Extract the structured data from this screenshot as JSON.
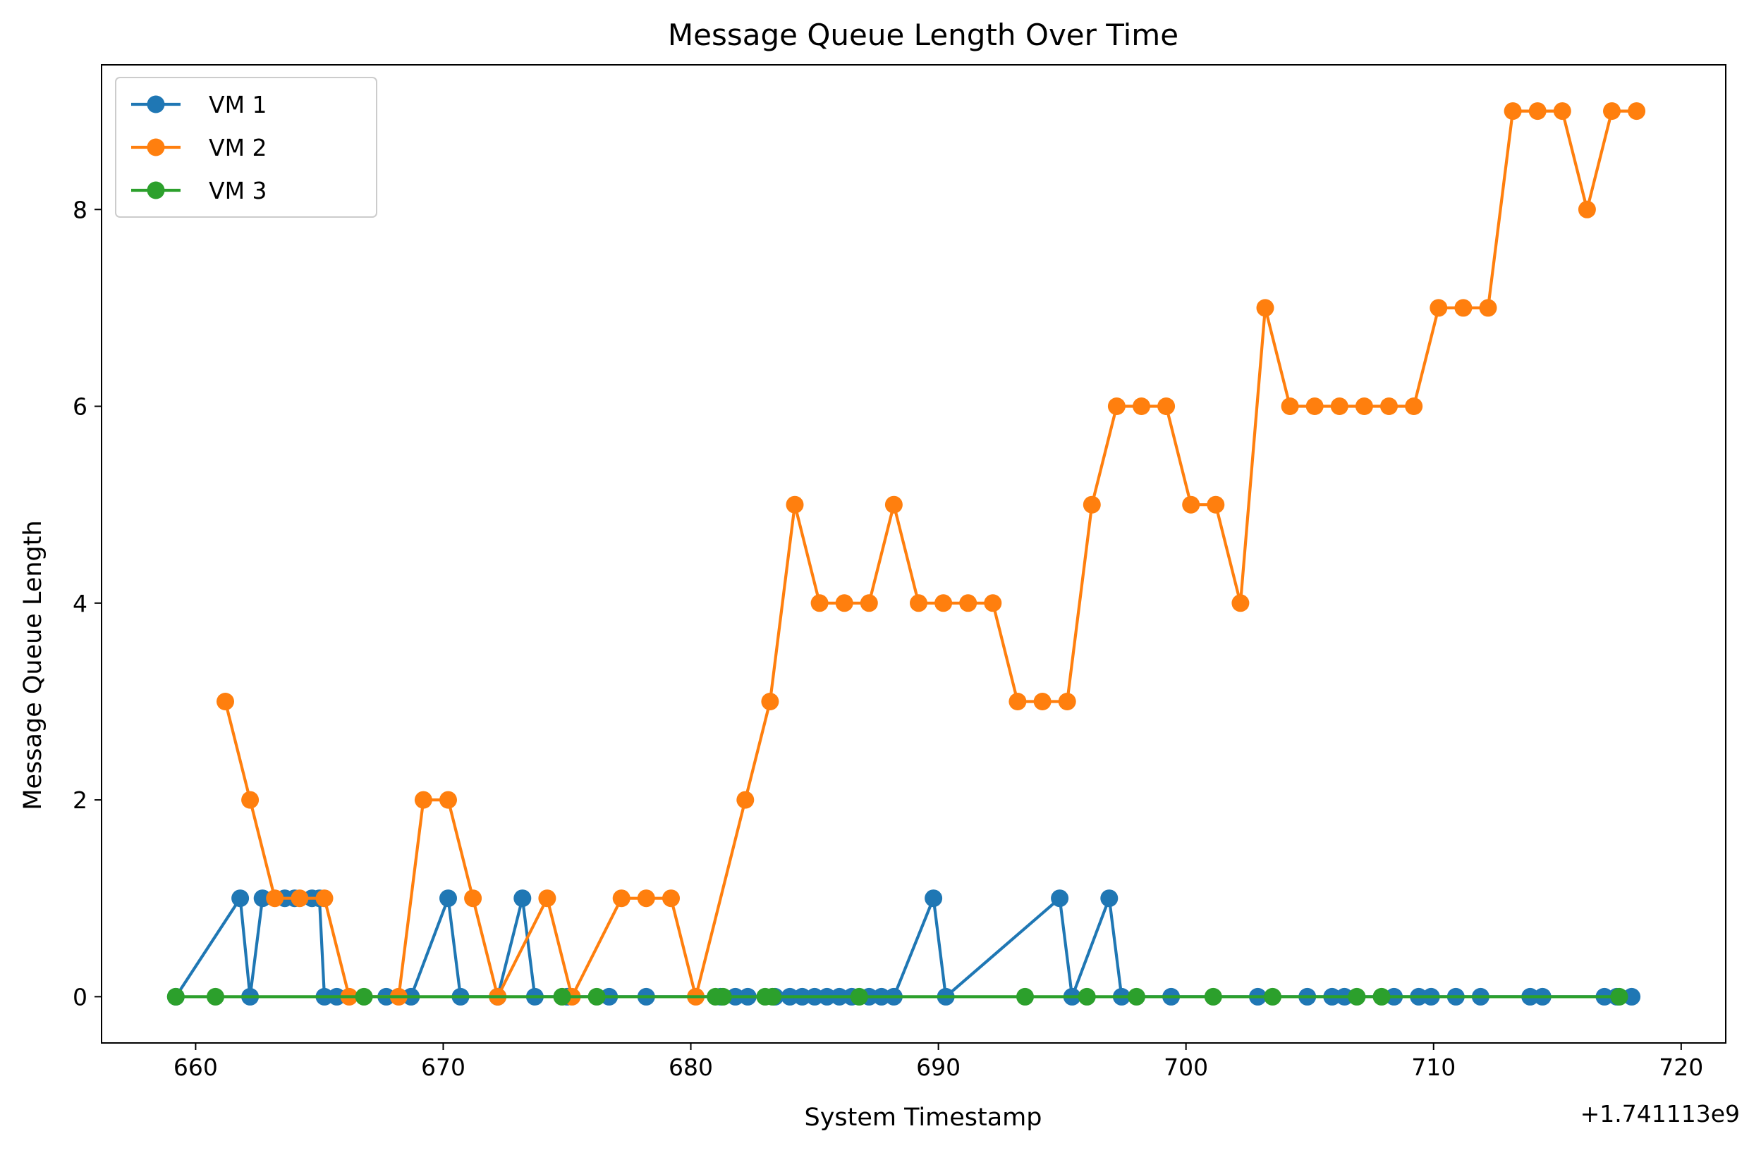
{
  "chart_data": {
    "type": "line",
    "title": "Message Queue Length Over Time",
    "xlabel": "System Timestamp",
    "ylabel": "Message Queue Length",
    "x_offset_label": "+1.741113e9",
    "xlim": [
      656.2,
      721.8
    ],
    "ylim": [
      -0.47,
      9.47
    ],
    "xticks": [
      660,
      670,
      680,
      690,
      700,
      710,
      720
    ],
    "yticks": [
      0,
      2,
      4,
      6,
      8
    ],
    "grid": false,
    "legend_position": "top-left",
    "series": [
      {
        "name": "VM 1",
        "color": "#1f77b4",
        "x": [
          659.2,
          661.8,
          662.2,
          662.7,
          663.6,
          664.0,
          664.7,
          665.0,
          665.2,
          665.7,
          667.7,
          668.7,
          670.2,
          670.7,
          672.2,
          673.2,
          673.7,
          675.0,
          676.7,
          678.2,
          681.2,
          681.8,
          682.3,
          683.4,
          684.0,
          684.5,
          685.0,
          685.5,
          686.0,
          686.5,
          687.2,
          687.7,
          688.2,
          689.8,
          690.3,
          694.9,
          695.4,
          696.9,
          697.4,
          699.4,
          702.9,
          704.9,
          705.9,
          706.4,
          708.4,
          709.4,
          709.9,
          710.9,
          711.9,
          713.9,
          714.4,
          716.9,
          717.4,
          718.0
        ],
        "y": [
          0,
          1,
          0,
          1,
          1,
          1,
          1,
          1,
          0,
          0,
          0,
          0,
          1,
          0,
          0,
          1,
          0,
          0,
          0,
          0,
          0,
          0,
          0,
          0,
          0,
          0,
          0,
          0,
          0,
          0,
          0,
          0,
          0,
          1,
          0,
          1,
          0,
          1,
          0,
          0,
          0,
          0,
          0,
          0,
          0,
          0,
          0,
          0,
          0,
          0,
          0,
          0,
          0,
          0
        ]
      },
      {
        "name": "VM 2",
        "color": "#ff7f0e",
        "x": [
          661.2,
          662.2,
          663.2,
          664.2,
          665.2,
          666.2,
          668.2,
          669.2,
          670.2,
          671.2,
          672.2,
          674.2,
          675.2,
          677.2,
          678.2,
          679.2,
          680.2,
          682.2,
          683.2,
          684.2,
          685.2,
          686.2,
          687.2,
          688.2,
          689.2,
          690.2,
          691.2,
          692.2,
          693.2,
          694.2,
          695.2,
          696.2,
          697.2,
          698.2,
          699.2,
          700.2,
          701.2,
          702.2,
          703.2,
          704.2,
          705.2,
          706.2,
          707.2,
          708.2,
          709.2,
          710.2,
          711.2,
          712.2,
          713.2,
          714.2,
          715.2,
          716.2,
          717.2,
          718.2
        ],
        "y": [
          3,
          2,
          1,
          1,
          1,
          0,
          0,
          2,
          2,
          1,
          0,
          1,
          0,
          1,
          1,
          1,
          0,
          2,
          3,
          5,
          4,
          4,
          4,
          5,
          4,
          4,
          4,
          4,
          3,
          3,
          3,
          5,
          6,
          6,
          6,
          5,
          5,
          4,
          7,
          6,
          6,
          6,
          6,
          6,
          6,
          7,
          7,
          7,
          9,
          9,
          9,
          8,
          9,
          9
        ]
      },
      {
        "name": "VM 3",
        "color": "#2ca02c",
        "x": [
          659.2,
          660.8,
          666.8,
          674.8,
          676.2,
          681.0,
          681.3,
          683.0,
          683.3,
          686.8,
          693.5,
          696.0,
          698.0,
          701.1,
          703.5,
          706.9,
          707.9,
          717.5
        ],
        "y": [
          0,
          0,
          0,
          0,
          0,
          0,
          0,
          0,
          0,
          0,
          0,
          0,
          0,
          0,
          0,
          0,
          0,
          0
        ]
      }
    ]
  }
}
